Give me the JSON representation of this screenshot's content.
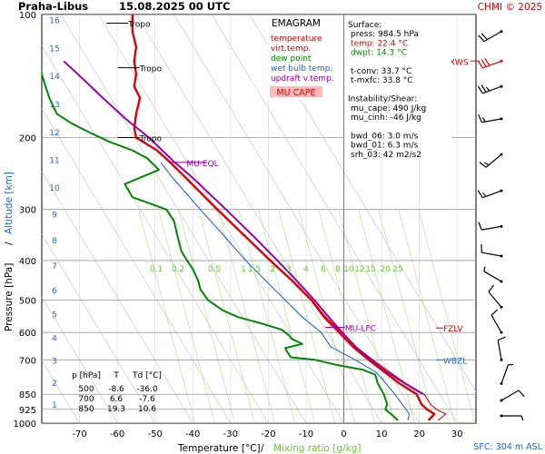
{
  "header": {
    "station": "Praha-Libus",
    "datetime": "15.08.2025 00 UTC",
    "credit": "CHMI © 2025"
  },
  "legend": {
    "title": "EMAGRAM",
    "items": [
      {
        "label": "temperature",
        "color": "#dd0000"
      },
      {
        "label": "virt.temp.",
        "color": "#dd0000"
      },
      {
        "label": "dew point",
        "color": "#008800"
      },
      {
        "label": "wet bulb temp.",
        "color": "#2266dd"
      },
      {
        "label": "updraft v.temp.",
        "color": "#9900aa"
      }
    ],
    "badge": "MU CAPE",
    "badge_color": "#ffbbbb"
  },
  "info": {
    "lines": [
      "Surface:",
      "press: 984.5 hPa",
      "temp: 22.4 °C",
      "dwpt: 14.3 °C",
      "",
      "t-conv: 33.7 °C",
      "t-mxfc: 33.8 °C",
      "",
      "Instability/Shear:",
      "mu_cape: 490 J/kg",
      "mu_cinh: -46 J/kg",
      "",
      "bwd_06: 3.0 m/s",
      "bwd_01: 6.3 m/s",
      "srh_03: 42 m2/s2"
    ],
    "colors": [
      "#000000",
      "#000000",
      "#dd0000",
      "#008800",
      "#000000",
      "#000000",
      "#000000",
      "#000000",
      "#000000",
      "#000000",
      "#000000",
      "#000000",
      "#000000",
      "#000000",
      "#000000"
    ]
  },
  "levels_table": {
    "headers": [
      "p [hPa]",
      "T",
      "Td [°C]"
    ],
    "rows": [
      [
        "500",
        "-8.6",
        "-36.0"
      ],
      [
        "700",
        "6.6",
        "-7.6"
      ],
      [
        "850",
        "19.3",
        "10.6"
      ]
    ]
  },
  "annotations": {
    "tropo": "Tropo",
    "mu_eql": "MU-EQL",
    "mu_lfc": "MU-LFC",
    "fzlv": "FZLV",
    "wbzl": "WBZL",
    "mxws": "MXWS",
    "sfc": "SFC: 304 m ASL"
  },
  "chart_data": {
    "type": "line",
    "x_axis": {
      "label": "Temperature [°C]",
      "separator": "/",
      "label2": "Mixing ratio [g/kg]",
      "ticks": [
        -70,
        -60,
        -50,
        -40,
        -30,
        -20,
        -10,
        0,
        10,
        20,
        30
      ],
      "range": [
        -80,
        35
      ]
    },
    "y_axis": {
      "label": "Pressure [hPa]",
      "separator": "/",
      "label2": "Altitude [km]",
      "scale": "log",
      "ticks": [
        100,
        200,
        300,
        400,
        500,
        600,
        700,
        850,
        925,
        1000
      ],
      "range": [
        1000,
        100
      ],
      "altitude_km_ticks": [
        1,
        2,
        3,
        4,
        5,
        6,
        7,
        8,
        9,
        10,
        11,
        12,
        13,
        14,
        15,
        16
      ]
    },
    "mixing_ratio_labels": [
      "0.1",
      "0.2",
      "0.5",
      "1",
      "1.5",
      "2",
      "3",
      "4",
      "6",
      "8",
      "10",
      "12",
      "15",
      "20",
      "25"
    ],
    "tropopause_levels_hpa": [
      105,
      135,
      200
    ],
    "mu_eql_hpa": 230,
    "mu_lfc_hpa": 583,
    "fzlv_hpa": 585,
    "wbzl_hpa": 700,
    "series": [
      {
        "name": "temperature",
        "color": "#dd0000",
        "points": [
          [
            984.5,
            22.4
          ],
          [
            950,
            24
          ],
          [
            925,
            22
          ],
          [
            900,
            20.6
          ],
          [
            850,
            19.3
          ],
          [
            800,
            14.8
          ],
          [
            750,
            10.8
          ],
          [
            700,
            6.6
          ],
          [
            650,
            2.4
          ],
          [
            600,
            -1.2
          ],
          [
            550,
            -5.2
          ],
          [
            500,
            -8.6
          ],
          [
            450,
            -13.5
          ],
          [
            400,
            -19.5
          ],
          [
            350,
            -26
          ],
          [
            300,
            -33.5
          ],
          [
            250,
            -42
          ],
          [
            230,
            -46
          ],
          [
            215,
            -49.5
          ],
          [
            200,
            -55
          ],
          [
            190,
            -55.5
          ],
          [
            175,
            -55
          ],
          [
            160,
            -54
          ],
          [
            150,
            -55.5
          ],
          [
            140,
            -55
          ],
          [
            130,
            -55.5
          ],
          [
            120,
            -55
          ],
          [
            110,
            -56
          ],
          [
            100,
            -56
          ]
        ]
      },
      {
        "name": "virt.temp.",
        "color": "#dd0000",
        "points": [
          [
            984.5,
            25
          ],
          [
            950,
            27
          ],
          [
            925,
            24.5
          ],
          [
            900,
            23
          ],
          [
            850,
            21.3
          ],
          [
            800,
            16.5
          ],
          [
            750,
            12.2
          ],
          [
            700,
            7.7
          ],
          [
            650,
            3.2
          ],
          [
            600,
            -0.6
          ],
          [
            550,
            -4.8
          ],
          [
            500,
            -8.4
          ],
          [
            450,
            -13.3
          ],
          [
            400,
            -19.3
          ],
          [
            350,
            -25.9
          ]
        ]
      },
      {
        "name": "dew point",
        "color": "#008800",
        "points": [
          [
            984.5,
            14.3
          ],
          [
            950,
            12.5
          ],
          [
            925,
            11
          ],
          [
            900,
            11.5
          ],
          [
            850,
            10.6
          ],
          [
            800,
            9
          ],
          [
            760,
            8.3
          ],
          [
            740,
            5
          ],
          [
            720,
            -2
          ],
          [
            700,
            -7.6
          ],
          [
            690,
            -14
          ],
          [
            670,
            -15
          ],
          [
            655,
            -15.5
          ],
          [
            640,
            -11
          ],
          [
            620,
            -14
          ],
          [
            610,
            -14.5
          ],
          [
            600,
            -15.5
          ],
          [
            590,
            -16.5
          ],
          [
            570,
            -22
          ],
          [
            550,
            -28
          ],
          [
            530,
            -32
          ],
          [
            500,
            -36
          ],
          [
            470,
            -38
          ],
          [
            450,
            -38.5
          ],
          [
            420,
            -40
          ],
          [
            400,
            -41.5
          ],
          [
            380,
            -43
          ],
          [
            350,
            -44
          ],
          [
            320,
            -45
          ],
          [
            300,
            -47
          ],
          [
            280,
            -56
          ],
          [
            260,
            -58
          ],
          [
            240,
            -49
          ],
          [
            225,
            -52
          ],
          [
            215,
            -56
          ],
          [
            205,
            -62
          ],
          [
            195,
            -67
          ],
          [
            185,
            -72
          ],
          [
            175,
            -76
          ],
          [
            160,
            -78
          ],
          [
            140,
            -80
          ],
          [
            120,
            -81
          ],
          [
            105,
            -80
          ]
        ]
      },
      {
        "name": "wet bulb temp.",
        "color": "#2266dd",
        "points": [
          [
            984.5,
            17
          ],
          [
            950,
            17.3
          ],
          [
            925,
            16.5
          ],
          [
            900,
            15.5
          ],
          [
            850,
            13.5
          ],
          [
            800,
            11.2
          ],
          [
            750,
            8.5
          ],
          [
            700,
            3
          ],
          [
            650,
            -3.5
          ],
          [
            600,
            -6
          ],
          [
            550,
            -11
          ],
          [
            500,
            -15.5
          ],
          [
            450,
            -20.5
          ],
          [
            400,
            -26
          ],
          [
            350,
            -31.5
          ],
          [
            300,
            -38
          ],
          [
            250,
            -45.5
          ],
          [
            230,
            -48.5
          ]
        ]
      },
      {
        "name": "updraft v.temp.",
        "color": "#9900aa",
        "points": [
          [
            850,
            21
          ],
          [
            800,
            16.2
          ],
          [
            750,
            11.5
          ],
          [
            700,
            7.2
          ],
          [
            650,
            3.1
          ],
          [
            600,
            -0.4
          ],
          [
            583,
            -1.6
          ],
          [
            550,
            -4
          ],
          [
            500,
            -7.8
          ],
          [
            450,
            -12.3
          ],
          [
            400,
            -17.6
          ],
          [
            350,
            -23.8
          ],
          [
            300,
            -31.2
          ],
          [
            250,
            -40.2
          ],
          [
            230,
            -44.8
          ],
          [
            200,
            -51.6
          ],
          [
            180,
            -57.8
          ],
          [
            160,
            -63.8
          ],
          [
            140,
            -70.4
          ],
          [
            130,
            -74.2
          ]
        ]
      }
    ],
    "wind_barbs": [
      {
        "p": 110,
        "dir": 240,
        "kt": 20,
        "color": "#000000"
      },
      {
        "p": 130,
        "dir": 250,
        "kt": 30,
        "color": "#dd0000"
      },
      {
        "p": 150,
        "dir": 250,
        "kt": 25,
        "color": "#000000"
      },
      {
        "p": 180,
        "dir": 260,
        "kt": 15,
        "color": "#000000"
      },
      {
        "p": 220,
        "dir": 230,
        "kt": 15,
        "color": "#000000"
      },
      {
        "p": 270,
        "dir": 250,
        "kt": 15,
        "color": "#000000"
      },
      {
        "p": 330,
        "dir": 260,
        "kt": 10,
        "color": "#000000"
      },
      {
        "p": 390,
        "dir": 280,
        "kt": 10,
        "color": "#000000"
      },
      {
        "p": 450,
        "dir": 300,
        "kt": 5,
        "color": "#000000"
      },
      {
        "p": 520,
        "dir": 320,
        "kt": 10,
        "color": "#000000"
      },
      {
        "p": 600,
        "dir": 330,
        "kt": 10,
        "color": "#000000"
      },
      {
        "p": 700,
        "dir": 350,
        "kt": 10,
        "color": "#000000"
      },
      {
        "p": 800,
        "dir": 20,
        "kt": 5,
        "color": "#000000"
      },
      {
        "p": 880,
        "dir": 60,
        "kt": 10,
        "color": "#000000"
      },
      {
        "p": 960,
        "dir": 90,
        "kt": 5,
        "color": "#000000"
      }
    ]
  }
}
